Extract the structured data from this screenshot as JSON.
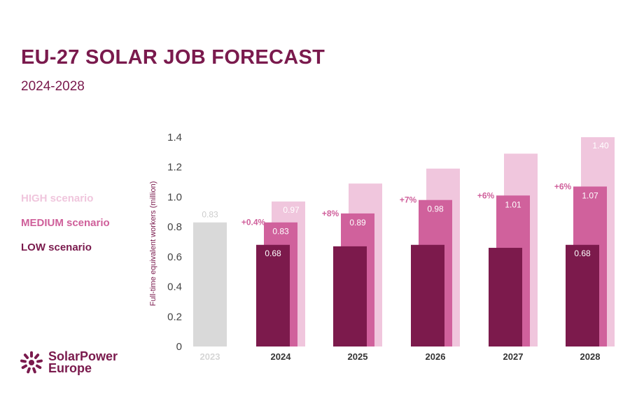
{
  "header": {
    "title": "EU-27 SOLAR JOB FORECAST",
    "subtitle": "2024-2028"
  },
  "brand": {
    "name_line1": "SolarPower",
    "name_line2": "Europe"
  },
  "colors": {
    "baseline": "#d9d9d9",
    "high": "#f0c6dd",
    "medium": "#d0619c",
    "low": "#7c1a4c",
    "text": "#7a1a4d"
  },
  "chart_data": {
    "type": "bar",
    "ylabel": "Full-time equivalent workers  (million)",
    "ylim": [
      0,
      1.4
    ],
    "yticks": [
      "0",
      "0.2",
      "0.4",
      "0.6",
      "0.8",
      "1.0",
      "1.2",
      "1.4"
    ],
    "legend": [
      {
        "name": "HIGH scenario",
        "key": "high"
      },
      {
        "name": "MEDIUM scenario",
        "key": "medium"
      },
      {
        "name": "LOW scenario",
        "key": "low"
      }
    ],
    "baseline": {
      "category": "2023",
      "value": 0.83,
      "label": "0.83"
    },
    "categories": [
      "2024",
      "2025",
      "2026",
      "2027",
      "2028"
    ],
    "high": [
      0.97,
      1.09,
      1.19,
      1.29,
      1.4
    ],
    "medium": [
      0.83,
      0.89,
      0.98,
      1.01,
      1.07
    ],
    "low": [
      0.68,
      0.67,
      0.68,
      0.66,
      0.68
    ],
    "high_labels": [
      "0.97",
      "",
      "",
      "",
      "1.40"
    ],
    "medium_labels": [
      "0.83",
      "0.89",
      "0.98",
      "1.01",
      "1.07"
    ],
    "low_labels": [
      "0.68",
      "",
      "",
      "",
      "0.68"
    ],
    "growth_labels": [
      "+0.4%",
      "+8%",
      "+7%",
      "+6%",
      "+6%"
    ]
  }
}
